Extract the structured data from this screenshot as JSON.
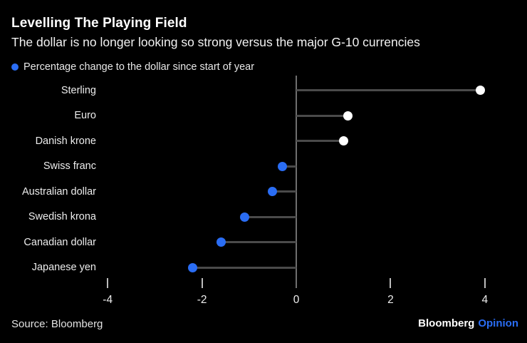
{
  "header": {
    "title": "Levelling The Playing Field",
    "subtitle": "The dollar is no longer looking so strong versus the major G-10 currencies"
  },
  "legend": {
    "label": "Percentage change to the dollar since start of year"
  },
  "chart_data": {
    "type": "scatter",
    "subtype": "horizontal-lollipop-dot-plot",
    "title": "Levelling The Playing Field",
    "subtitle": "The dollar is no longer looking so strong versus the major G-10 currencies",
    "legend_label": "Percentage change to the dollar since start of year",
    "categories": [
      "Sterling",
      "Euro",
      "Danish krone",
      "Swiss franc",
      "Australian dollar",
      "Swedish krona",
      "Canadian dollar",
      "Japanese yen"
    ],
    "values": [
      3.9,
      1.1,
      1.0,
      -0.3,
      -0.5,
      -1.1,
      -1.6,
      -2.2
    ],
    "unit": "%",
    "xlabel": "",
    "ylabel": "",
    "x_ticks": [
      -4,
      -2,
      0,
      2,
      4
    ],
    "xlim": [
      -4.6,
      4.9
    ],
    "grid": false,
    "legend_position": "top-left",
    "positive_dot_color": "#ffffff",
    "negative_dot_color": "#2a6df4"
  },
  "footer": {
    "source": "Source: Bloomberg",
    "brand_name": "Bloomberg",
    "brand_suffix": "Opinion"
  },
  "colors": {
    "background": "#000000",
    "accent_blue": "#2a6df4",
    "axis_line": "#6f6f6f",
    "stem_line": "#4a4a4a",
    "tick_mark": "#bdbdbd",
    "text_primary": "#ffffff",
    "text_secondary": "#e8e8e8"
  }
}
